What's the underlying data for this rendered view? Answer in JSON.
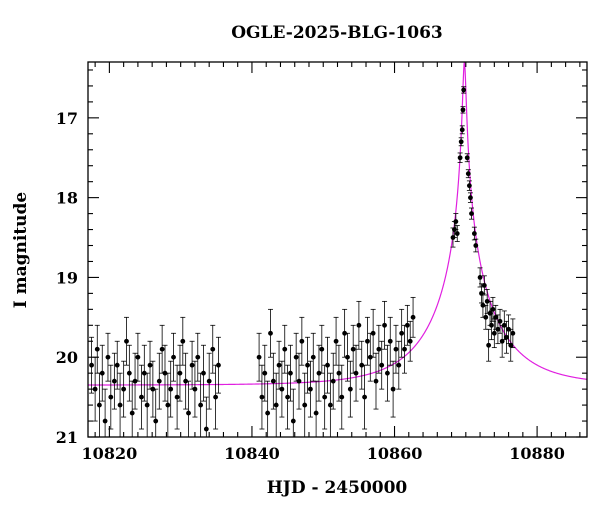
{
  "chart_data": {
    "type": "scatter",
    "title": "OGLE-2025-BLG-1063",
    "xlabel": "HJD - 2450000",
    "ylabel": "I magnitude",
    "xlim": [
      10817,
      10887
    ],
    "ylim": [
      16.3,
      21.0
    ],
    "y_inverted": true,
    "x_ticks": [
      10820,
      10840,
      10860,
      10880
    ],
    "y_ticks": [
      17,
      18,
      19,
      20,
      21
    ],
    "grid": false,
    "legend": "none",
    "colors": {
      "points": "#000000",
      "model": "#e020e0",
      "axes": "#000000"
    },
    "model": {
      "description_type": "point-lens",
      "t0": 10869.8,
      "peak_mag": 16.3,
      "baseline_mag": 20.35
    },
    "points": [
      {
        "x": 10817.5,
        "y": 20.1,
        "e": 0.35
      },
      {
        "x": 10818.0,
        "y": 20.4,
        "e": 0.4
      },
      {
        "x": 10818.3,
        "y": 19.9,
        "e": 0.3
      },
      {
        "x": 10818.6,
        "y": 20.6,
        "e": 0.4
      },
      {
        "x": 10819.0,
        "y": 20.2,
        "e": 0.35
      },
      {
        "x": 10819.4,
        "y": 20.8,
        "e": 0.4
      },
      {
        "x": 10819.8,
        "y": 20.0,
        "e": 0.3
      },
      {
        "x": 10820.2,
        "y": 20.5,
        "e": 0.4
      },
      {
        "x": 10820.7,
        "y": 20.3,
        "e": 0.35
      },
      {
        "x": 10821.1,
        "y": 20.1,
        "e": 0.3
      },
      {
        "x": 10821.5,
        "y": 20.6,
        "e": 0.4
      },
      {
        "x": 10822.0,
        "y": 20.4,
        "e": 0.35
      },
      {
        "x": 10822.4,
        "y": 19.8,
        "e": 0.3
      },
      {
        "x": 10822.8,
        "y": 20.2,
        "e": 0.35
      },
      {
        "x": 10823.2,
        "y": 20.7,
        "e": 0.4
      },
      {
        "x": 10823.6,
        "y": 20.3,
        "e": 0.35
      },
      {
        "x": 10824.0,
        "y": 20.0,
        "e": 0.3
      },
      {
        "x": 10824.5,
        "y": 20.5,
        "e": 0.4
      },
      {
        "x": 10824.9,
        "y": 20.2,
        "e": 0.35
      },
      {
        "x": 10825.3,
        "y": 20.6,
        "e": 0.4
      },
      {
        "x": 10825.7,
        "y": 20.1,
        "e": 0.3
      },
      {
        "x": 10826.1,
        "y": 20.4,
        "e": 0.35
      },
      {
        "x": 10826.5,
        "y": 20.8,
        "e": 0.4
      },
      {
        "x": 10827.0,
        "y": 20.3,
        "e": 0.35
      },
      {
        "x": 10827.4,
        "y": 19.9,
        "e": 0.3
      },
      {
        "x": 10827.8,
        "y": 20.2,
        "e": 0.35
      },
      {
        "x": 10828.2,
        "y": 20.6,
        "e": 0.4
      },
      {
        "x": 10828.6,
        "y": 20.4,
        "e": 0.35
      },
      {
        "x": 10829.0,
        "y": 20.0,
        "e": 0.3
      },
      {
        "x": 10829.5,
        "y": 20.5,
        "e": 0.4
      },
      {
        "x": 10829.9,
        "y": 20.2,
        "e": 0.35
      },
      {
        "x": 10830.3,
        "y": 19.8,
        "e": 0.3
      },
      {
        "x": 10830.7,
        "y": 20.3,
        "e": 0.35
      },
      {
        "x": 10831.1,
        "y": 20.7,
        "e": 0.4
      },
      {
        "x": 10831.6,
        "y": 20.1,
        "e": 0.3
      },
      {
        "x": 10832.0,
        "y": 20.4,
        "e": 0.35
      },
      {
        "x": 10832.4,
        "y": 20.0,
        "e": 0.3
      },
      {
        "x": 10832.8,
        "y": 20.6,
        "e": 0.4
      },
      {
        "x": 10833.2,
        "y": 20.2,
        "e": 0.35
      },
      {
        "x": 10833.6,
        "y": 20.9,
        "e": 0.4
      },
      {
        "x": 10834.0,
        "y": 20.3,
        "e": 0.35
      },
      {
        "x": 10834.5,
        "y": 19.9,
        "e": 0.3
      },
      {
        "x": 10834.9,
        "y": 20.5,
        "e": 0.4
      },
      {
        "x": 10835.3,
        "y": 20.1,
        "e": 0.35
      },
      {
        "x": 10841.0,
        "y": 20.0,
        "e": 0.3
      },
      {
        "x": 10841.4,
        "y": 20.5,
        "e": 0.4
      },
      {
        "x": 10841.8,
        "y": 20.2,
        "e": 0.35
      },
      {
        "x": 10842.2,
        "y": 20.7,
        "e": 0.4
      },
      {
        "x": 10842.6,
        "y": 19.7,
        "e": 0.3
      },
      {
        "x": 10843.0,
        "y": 20.3,
        "e": 0.35
      },
      {
        "x": 10843.4,
        "y": 20.6,
        "e": 0.4
      },
      {
        "x": 10843.8,
        "y": 20.1,
        "e": 0.3
      },
      {
        "x": 10844.2,
        "y": 20.4,
        "e": 0.35
      },
      {
        "x": 10844.6,
        "y": 19.9,
        "e": 0.3
      },
      {
        "x": 10845.0,
        "y": 20.5,
        "e": 0.4
      },
      {
        "x": 10845.4,
        "y": 20.2,
        "e": 0.35
      },
      {
        "x": 10845.8,
        "y": 20.8,
        "e": 0.4
      },
      {
        "x": 10846.2,
        "y": 20.0,
        "e": 0.3
      },
      {
        "x": 10846.6,
        "y": 20.3,
        "e": 0.35
      },
      {
        "x": 10847.0,
        "y": 19.8,
        "e": 0.3
      },
      {
        "x": 10847.4,
        "y": 20.6,
        "e": 0.4
      },
      {
        "x": 10847.8,
        "y": 20.1,
        "e": 0.35
      },
      {
        "x": 10848.2,
        "y": 20.4,
        "e": 0.35
      },
      {
        "x": 10848.6,
        "y": 20.0,
        "e": 0.3
      },
      {
        "x": 10849.0,
        "y": 20.7,
        "e": 0.4
      },
      {
        "x": 10849.4,
        "y": 20.2,
        "e": 0.35
      },
      {
        "x": 10849.8,
        "y": 19.9,
        "e": 0.3
      },
      {
        "x": 10850.2,
        "y": 20.5,
        "e": 0.4
      },
      {
        "x": 10850.6,
        "y": 20.1,
        "e": 0.35
      },
      {
        "x": 10851.0,
        "y": 20.6,
        "e": 0.4
      },
      {
        "x": 10851.4,
        "y": 20.3,
        "e": 0.35
      },
      {
        "x": 10851.8,
        "y": 19.8,
        "e": 0.3
      },
      {
        "x": 10852.2,
        "y": 20.2,
        "e": 0.35
      },
      {
        "x": 10852.6,
        "y": 20.5,
        "e": 0.4
      },
      {
        "x": 10853.0,
        "y": 19.7,
        "e": 0.3
      },
      {
        "x": 10853.4,
        "y": 20.0,
        "e": 0.3
      },
      {
        "x": 10853.8,
        "y": 20.4,
        "e": 0.35
      },
      {
        "x": 10854.2,
        "y": 19.9,
        "e": 0.3
      },
      {
        "x": 10854.6,
        "y": 20.2,
        "e": 0.35
      },
      {
        "x": 10855.0,
        "y": 19.6,
        "e": 0.3
      },
      {
        "x": 10855.4,
        "y": 20.1,
        "e": 0.3
      },
      {
        "x": 10855.8,
        "y": 20.5,
        "e": 0.4
      },
      {
        "x": 10856.2,
        "y": 19.8,
        "e": 0.3
      },
      {
        "x": 10856.6,
        "y": 20.0,
        "e": 0.3
      },
      {
        "x": 10857.0,
        "y": 19.7,
        "e": 0.3
      },
      {
        "x": 10857.4,
        "y": 20.3,
        "e": 0.35
      },
      {
        "x": 10857.8,
        "y": 19.9,
        "e": 0.3
      },
      {
        "x": 10858.2,
        "y": 20.1,
        "e": 0.3
      },
      {
        "x": 10858.6,
        "y": 19.6,
        "e": 0.3
      },
      {
        "x": 10859.0,
        "y": 20.2,
        "e": 0.35
      },
      {
        "x": 10859.4,
        "y": 19.8,
        "e": 0.3
      },
      {
        "x": 10859.8,
        "y": 20.4,
        "e": 0.35
      },
      {
        "x": 10860.2,
        "y": 19.9,
        "e": 0.3
      },
      {
        "x": 10860.6,
        "y": 20.1,
        "e": 0.3
      },
      {
        "x": 10861.0,
        "y": 19.7,
        "e": 0.3
      },
      {
        "x": 10861.4,
        "y": 19.9,
        "e": 0.3
      },
      {
        "x": 10861.8,
        "y": 19.6,
        "e": 0.25
      },
      {
        "x": 10862.2,
        "y": 19.8,
        "e": 0.25
      },
      {
        "x": 10862.6,
        "y": 19.5,
        "e": 0.25
      },
      {
        "x": 10868.2,
        "y": 18.5,
        "e": 0.12
      },
      {
        "x": 10868.4,
        "y": 18.4,
        "e": 0.1
      },
      {
        "x": 10868.6,
        "y": 18.3,
        "e": 0.1
      },
      {
        "x": 10868.8,
        "y": 18.45,
        "e": 0.1
      },
      {
        "x": 10869.2,
        "y": 17.5,
        "e": 0.06
      },
      {
        "x": 10869.35,
        "y": 17.3,
        "e": 0.05
      },
      {
        "x": 10869.5,
        "y": 17.15,
        "e": 0.05
      },
      {
        "x": 10869.6,
        "y": 16.9,
        "e": 0.04
      },
      {
        "x": 10869.7,
        "y": 16.65,
        "e": 0.04
      },
      {
        "x": 10870.2,
        "y": 17.5,
        "e": 0.05
      },
      {
        "x": 10870.35,
        "y": 17.7,
        "e": 0.05
      },
      {
        "x": 10870.5,
        "y": 17.85,
        "e": 0.06
      },
      {
        "x": 10870.65,
        "y": 18.0,
        "e": 0.06
      },
      {
        "x": 10870.8,
        "y": 18.2,
        "e": 0.07
      },
      {
        "x": 10871.2,
        "y": 18.45,
        "e": 0.08
      },
      {
        "x": 10871.4,
        "y": 18.6,
        "e": 0.08
      },
      {
        "x": 10872.0,
        "y": 19.0,
        "e": 0.12
      },
      {
        "x": 10872.2,
        "y": 19.2,
        "e": 0.12
      },
      {
        "x": 10872.4,
        "y": 19.35,
        "e": 0.15
      },
      {
        "x": 10872.6,
        "y": 19.1,
        "e": 0.12
      },
      {
        "x": 10872.8,
        "y": 19.5,
        "e": 0.15
      },
      {
        "x": 10873.0,
        "y": 19.3,
        "e": 0.15
      },
      {
        "x": 10873.2,
        "y": 19.85,
        "e": 0.2
      },
      {
        "x": 10873.4,
        "y": 19.45,
        "e": 0.15
      },
      {
        "x": 10873.6,
        "y": 19.6,
        "e": 0.18
      },
      {
        "x": 10873.8,
        "y": 19.4,
        "e": 0.15
      },
      {
        "x": 10874.0,
        "y": 19.7,
        "e": 0.18
      },
      {
        "x": 10874.2,
        "y": 19.5,
        "e": 0.15
      },
      {
        "x": 10874.5,
        "y": 19.65,
        "e": 0.18
      },
      {
        "x": 10874.8,
        "y": 19.55,
        "e": 0.15
      },
      {
        "x": 10875.1,
        "y": 19.8,
        "e": 0.2
      },
      {
        "x": 10875.4,
        "y": 19.6,
        "e": 0.18
      },
      {
        "x": 10875.7,
        "y": 19.75,
        "e": 0.2
      },
      {
        "x": 10876.0,
        "y": 19.65,
        "e": 0.18
      },
      {
        "x": 10876.3,
        "y": 19.85,
        "e": 0.2
      },
      {
        "x": 10876.6,
        "y": 19.7,
        "e": 0.18
      }
    ]
  }
}
